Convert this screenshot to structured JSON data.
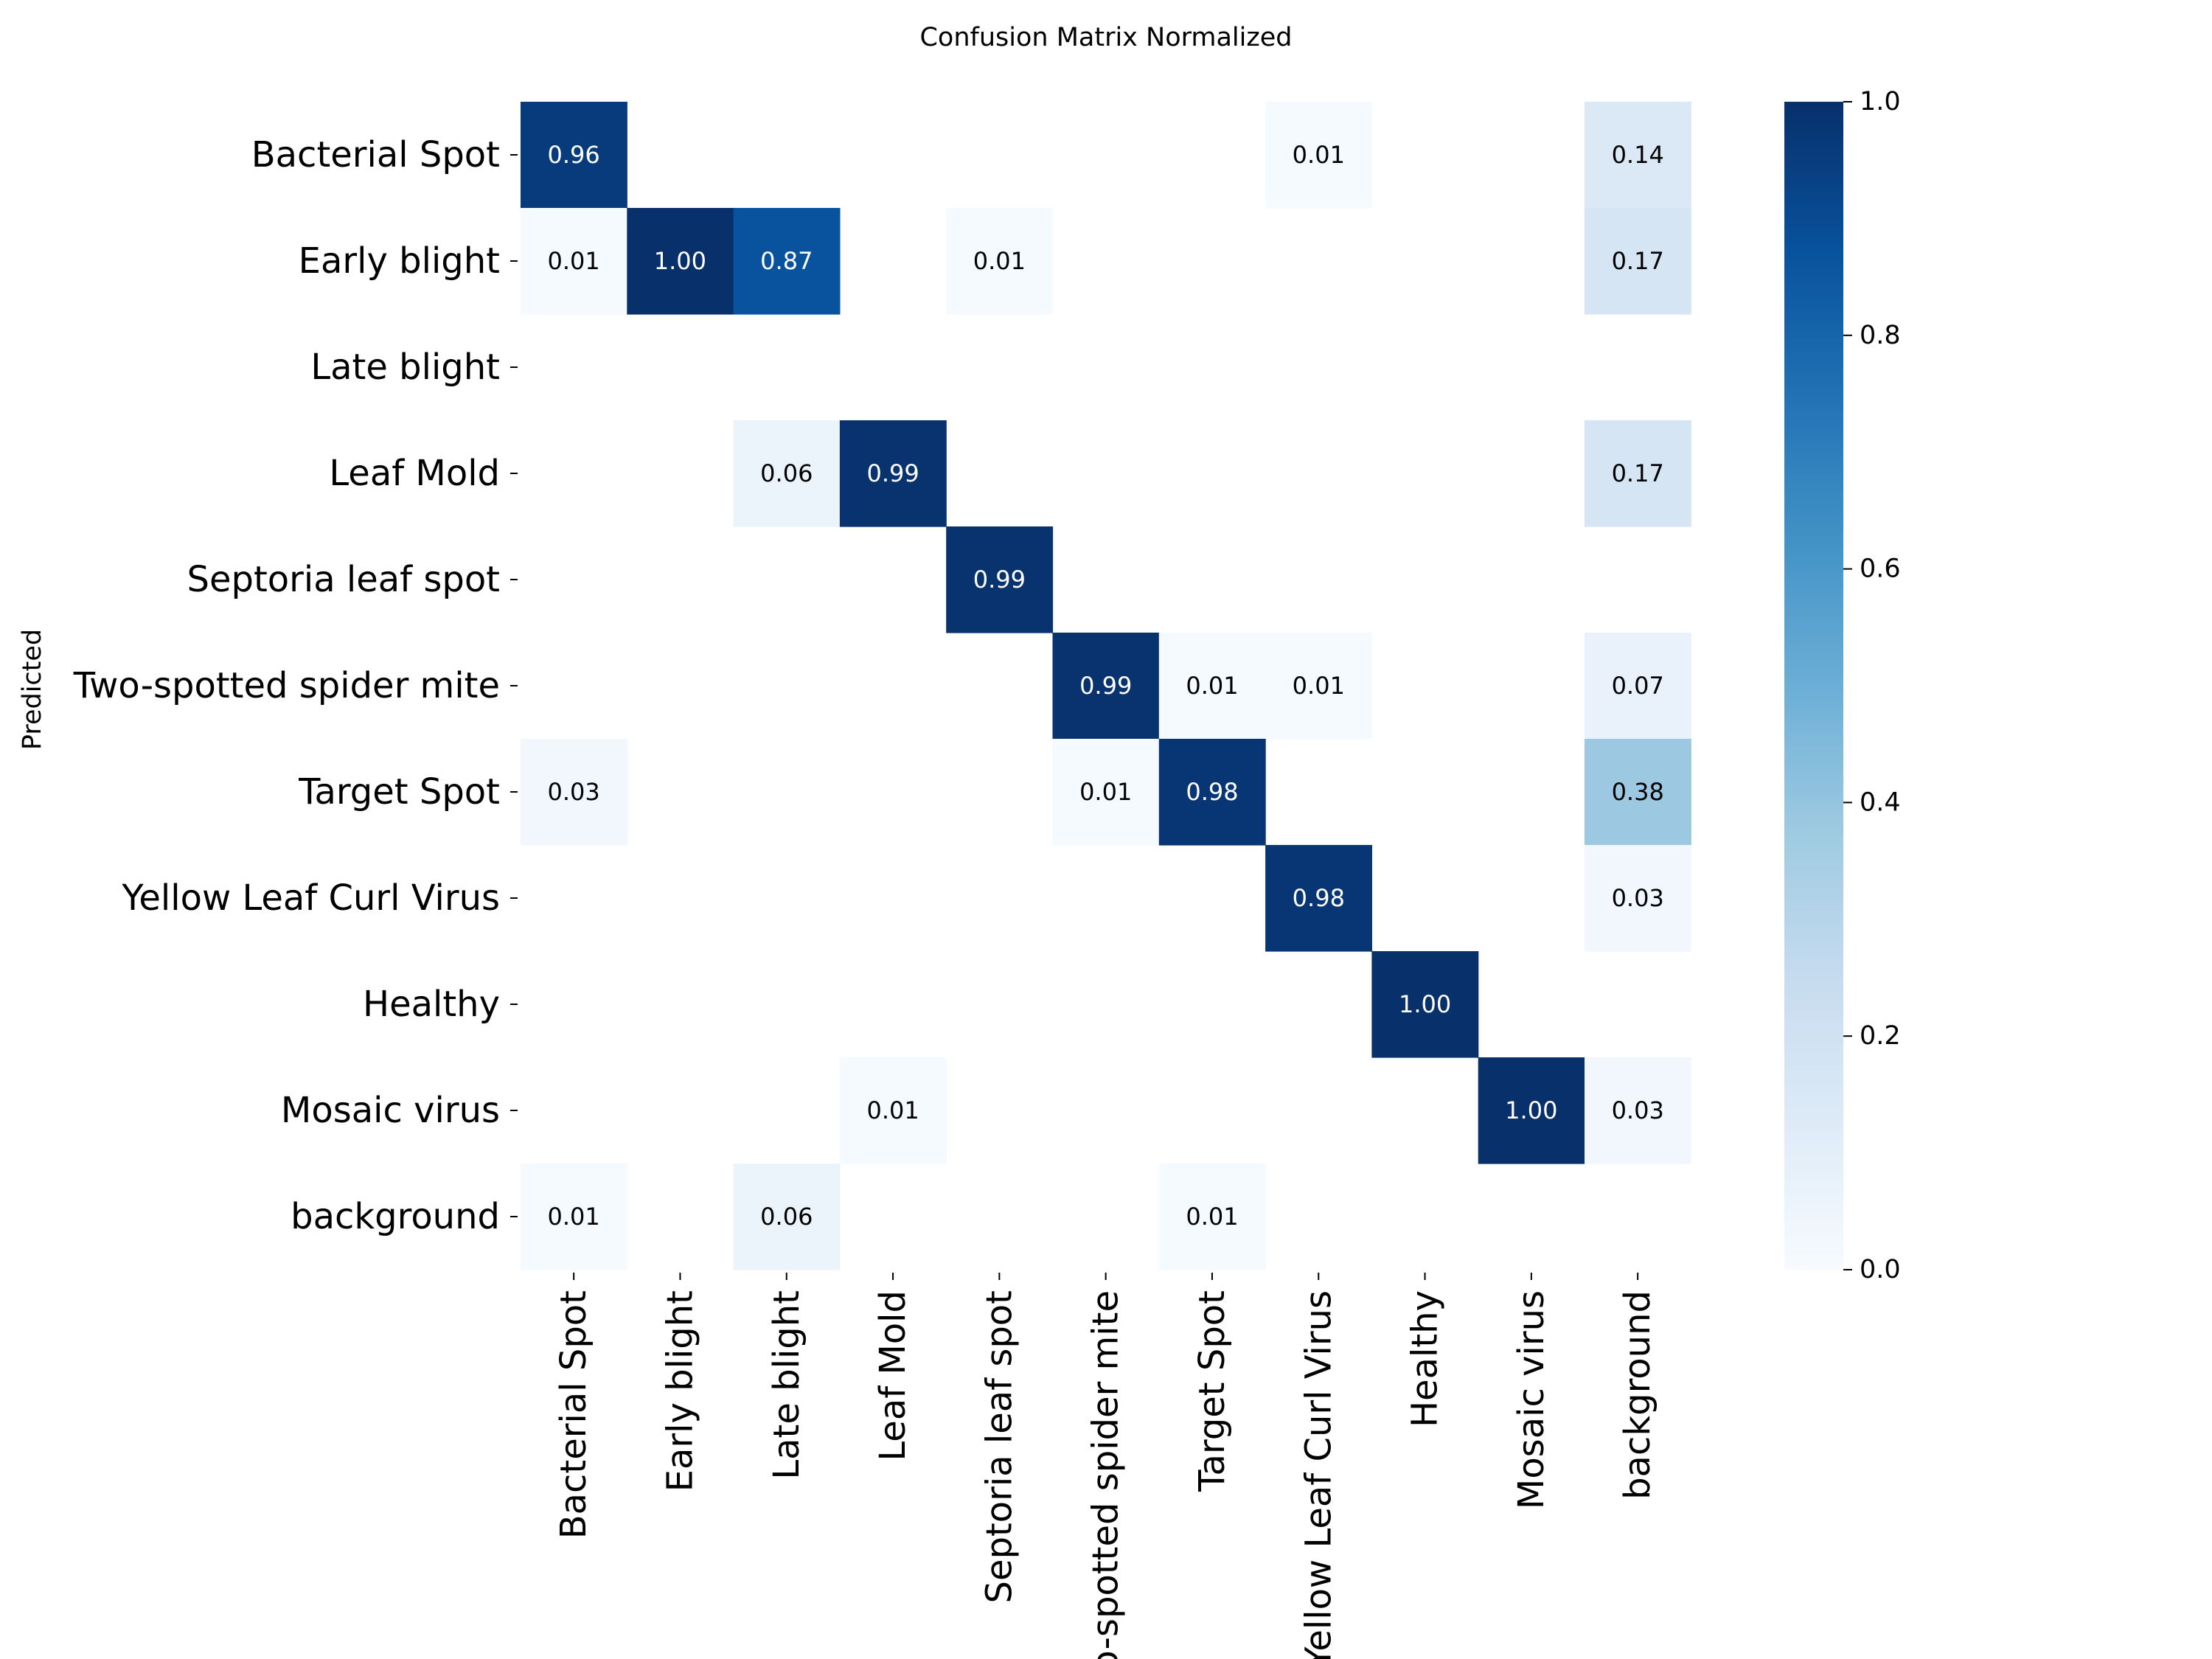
{
  "chart_data": {
    "type": "heatmap",
    "title": "Confusion Matrix Normalized",
    "ylabel": "Predicted",
    "xlabel": "",
    "rows": [
      "Bacterial Spot",
      "Early blight",
      "Late blight",
      "Leaf Mold",
      "Septoria leaf spot",
      "Two-spotted spider mite",
      "Target Spot",
      "Yellow Leaf Curl Virus",
      "Healthy",
      "Mosaic virus",
      "background"
    ],
    "columns": [
      "Bacterial Spot",
      "Early blight",
      "Late blight",
      "Leaf Mold",
      "Septoria leaf spot",
      "Two-spotted spider mite",
      "Target Spot",
      "Yellow Leaf Curl Virus",
      "Healthy",
      "Mosaic virus",
      "background"
    ],
    "values": [
      [
        0.96,
        null,
        null,
        null,
        null,
        null,
        null,
        0.01,
        null,
        null,
        0.14
      ],
      [
        0.01,
        1.0,
        0.87,
        null,
        0.01,
        null,
        null,
        null,
        null,
        null,
        0.17
      ],
      [
        null,
        null,
        null,
        null,
        null,
        null,
        null,
        null,
        null,
        null,
        null
      ],
      [
        null,
        null,
        0.06,
        0.99,
        null,
        null,
        null,
        null,
        null,
        null,
        0.17
      ],
      [
        null,
        null,
        null,
        null,
        0.99,
        null,
        null,
        null,
        null,
        null,
        null
      ],
      [
        null,
        null,
        null,
        null,
        null,
        0.99,
        0.01,
        0.01,
        null,
        null,
        0.07
      ],
      [
        0.03,
        null,
        null,
        null,
        null,
        0.01,
        0.98,
        null,
        null,
        null,
        0.38
      ],
      [
        null,
        null,
        null,
        null,
        null,
        null,
        null,
        0.98,
        null,
        null,
        0.03
      ],
      [
        null,
        null,
        null,
        null,
        null,
        null,
        null,
        null,
        1.0,
        null,
        null
      ],
      [
        null,
        null,
        null,
        0.01,
        null,
        null,
        null,
        null,
        null,
        1.0,
        0.03
      ],
      [
        0.01,
        null,
        0.06,
        null,
        null,
        null,
        0.01,
        null,
        null,
        null,
        null
      ]
    ],
    "colorbar": {
      "range": [
        0.0,
        1.0
      ],
      "ticks": [
        "0.0",
        "0.2",
        "0.4",
        "0.6",
        "0.8",
        "1.0"
      ],
      "colormap": "Blues"
    },
    "value_format": "2 decimals",
    "grid": false,
    "legend": "colorbar right"
  }
}
